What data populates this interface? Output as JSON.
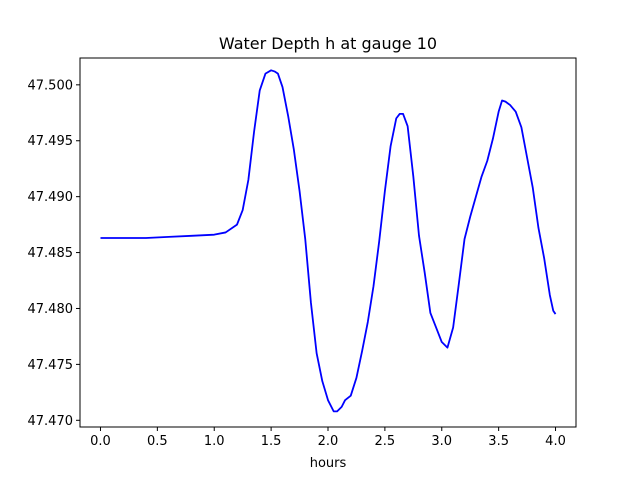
{
  "chart_data": {
    "type": "line",
    "title": "Water Depth h at gauge 10",
    "xlabel": "hours",
    "ylabel": "",
    "xlim": [
      -0.18,
      4.18
    ],
    "ylim": [
      47.4694,
      47.5024
    ],
    "grid": false,
    "x_ticks": [
      0.0,
      0.5,
      1.0,
      1.5,
      2.0,
      2.5,
      3.0,
      3.5,
      4.0
    ],
    "x_tick_labels": [
      "0.0",
      "0.5",
      "1.0",
      "1.5",
      "2.0",
      "2.5",
      "3.0",
      "3.5",
      "4.0"
    ],
    "y_ticks": [
      47.47,
      47.475,
      47.48,
      47.485,
      47.49,
      47.495,
      47.5
    ],
    "y_tick_labels": [
      "47.470",
      "47.475",
      "47.480",
      "47.485",
      "47.490",
      "47.495",
      "47.500"
    ],
    "series": [
      {
        "color": "#0000ff",
        "x": [
          0.0,
          0.2,
          0.4,
          0.6,
          0.8,
          1.0,
          1.1,
          1.2,
          1.25,
          1.3,
          1.35,
          1.4,
          1.45,
          1.5,
          1.53,
          1.56,
          1.6,
          1.65,
          1.7,
          1.75,
          1.8,
          1.85,
          1.9,
          1.95,
          2.0,
          2.05,
          2.08,
          2.12,
          2.15,
          2.2,
          2.25,
          2.3,
          2.35,
          2.4,
          2.45,
          2.5,
          2.55,
          2.6,
          2.63,
          2.66,
          2.7,
          2.75,
          2.8,
          2.85,
          2.9,
          2.95,
          3.0,
          3.05,
          3.1,
          3.15,
          3.2,
          3.25,
          3.3,
          3.35,
          3.4,
          3.45,
          3.5,
          3.53,
          3.56,
          3.6,
          3.65,
          3.7,
          3.75,
          3.8,
          3.85,
          3.9,
          3.95,
          3.98,
          4.0
        ],
        "y": [
          47.4863,
          47.4863,
          47.4863,
          47.4864,
          47.4865,
          47.4866,
          47.4868,
          47.4875,
          47.4888,
          47.4915,
          47.4958,
          47.4995,
          47.501,
          47.5013,
          47.5012,
          47.501,
          47.4998,
          47.4972,
          47.4942,
          47.4905,
          47.4862,
          47.4805,
          47.476,
          47.4735,
          47.4718,
          47.4708,
          47.4708,
          47.4712,
          47.4718,
          47.4722,
          47.4738,
          47.4762,
          47.4788,
          47.482,
          47.486,
          47.4905,
          47.4945,
          47.497,
          47.4974,
          47.4974,
          47.4963,
          47.4918,
          47.4865,
          47.4832,
          47.4796,
          47.4783,
          47.477,
          47.4765,
          47.4783,
          47.4822,
          47.4862,
          47.4882,
          47.49,
          47.4918,
          47.4932,
          47.4952,
          47.4976,
          47.4986,
          47.4985,
          47.4982,
          47.4976,
          47.4962,
          47.4935,
          47.4908,
          47.4872,
          47.4845,
          47.4812,
          47.4798,
          47.4795
        ]
      }
    ]
  }
}
